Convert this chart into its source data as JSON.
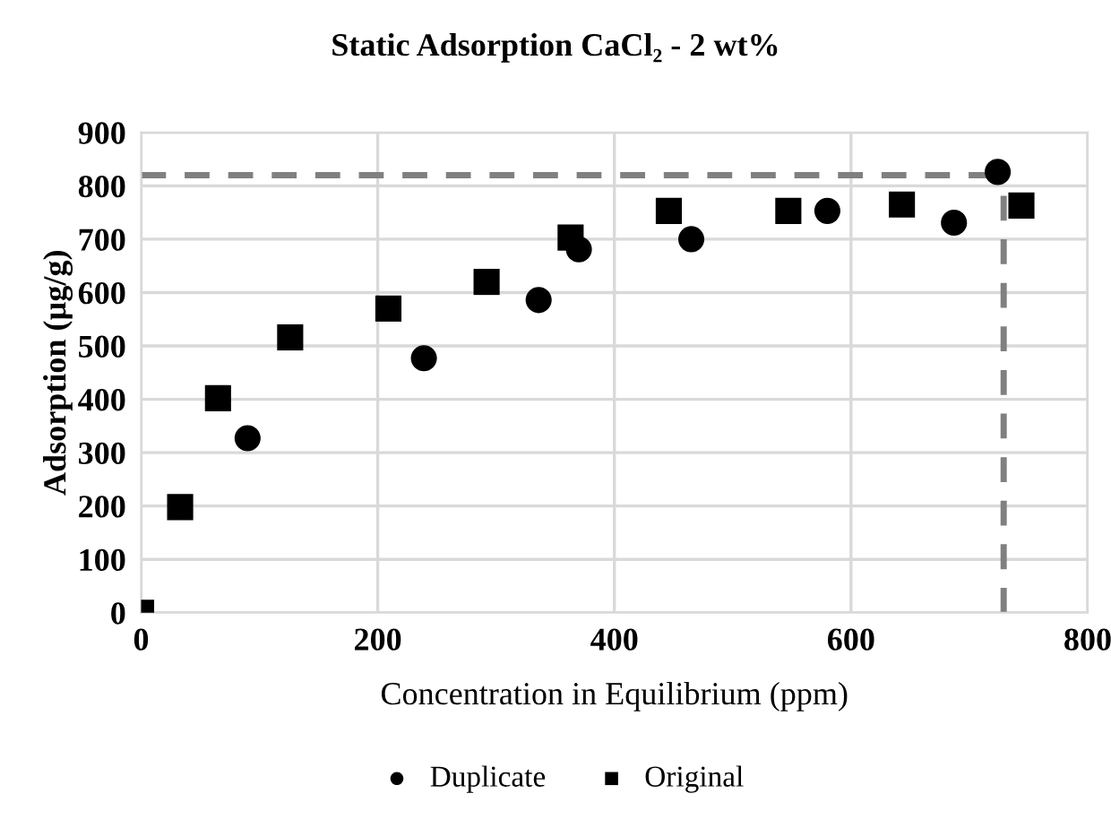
{
  "chart_data": {
    "type": "scatter",
    "title": "Static Adsorption CaCl₂ - 2 wt%",
    "xlabel": "Concentration in Equilibrium (ppm)",
    "ylabel": "Adsorption (µg/g)",
    "series": [
      {
        "name": "Duplicate",
        "color": "#000000",
        "marker": "circle",
        "x": [
          90,
          239,
          336,
          370,
          465,
          580,
          687,
          724
        ],
        "values": [
          327,
          477,
          586,
          681,
          700,
          753,
          731,
          826
        ]
      },
      {
        "name": "Original",
        "color": "#000000",
        "marker": "square",
        "x": [
          0,
          33,
          65,
          126,
          209,
          292,
          363,
          446,
          547,
          643,
          744
        ],
        "values": [
          0,
          198,
          402,
          516,
          570,
          620,
          703,
          753,
          753,
          765,
          763
        ]
      }
    ],
    "xlim": [
      0,
      800
    ],
    "xticks": [
      0,
      200,
      400,
      600,
      800
    ],
    "ylim": [
      0,
      900
    ],
    "yticks": [
      0,
      100,
      200,
      300,
      400,
      500,
      600,
      700,
      800,
      900
    ],
    "ref_lines": [
      {
        "axis": "y",
        "value": 820,
        "label": null,
        "color": "#808080",
        "line_style": "dashed"
      },
      {
        "axis": "x",
        "value": 729,
        "label": null,
        "color": "#808080",
        "line_style": "dashed"
      }
    ],
    "grid": true,
    "legend": "bottom"
  }
}
